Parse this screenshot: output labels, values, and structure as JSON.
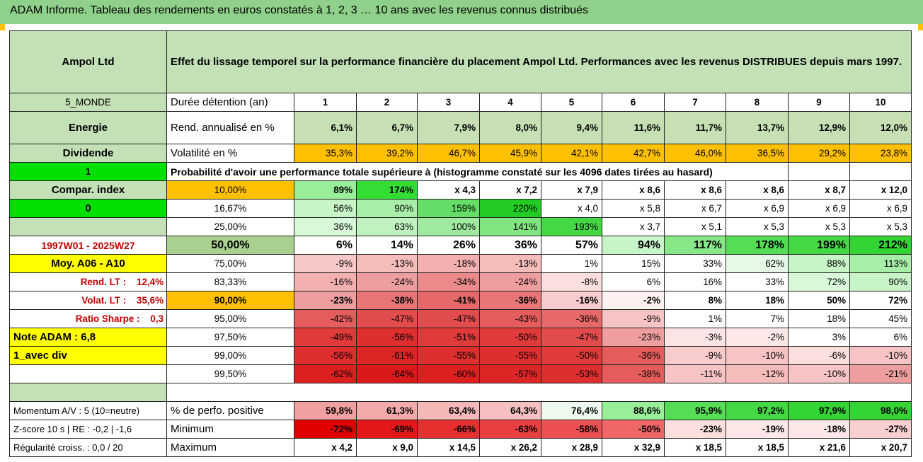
{
  "header_title": "ADAM Informe. Tableau des rendements en euros constatés à 1, 2, 3 … 10 ans avec les revenus connus distribués",
  "company": "Ampol Ltd",
  "description": "Effet du lissage temporel sur la performance financière du placement Ampol Ltd. Performances avec les revenus DISTRIBUES depuis mars 1997.",
  "durations": [
    "1",
    "2",
    "3",
    "4",
    "5",
    "6",
    "7",
    "8",
    "9",
    "10"
  ],
  "info_rows": [
    {
      "left": "5_MONDE",
      "label": "Durée détention (an)"
    },
    {
      "left": "Energie",
      "label": "Rend. annualisé en %",
      "values": [
        "6,1%",
        "6,7%",
        "7,9%",
        "8,0%",
        "9,4%",
        "11,6%",
        "11,7%",
        "13,7%",
        "12,9%",
        "12,0%"
      ]
    },
    {
      "left": "Dividende",
      "label": "Volatilité en %",
      "values": [
        "35,3%",
        "39,2%",
        "46,7%",
        "45,9%",
        "42,1%",
        "42,7%",
        "46,0%",
        "36,5%",
        "29,2%",
        "23,8%"
      ]
    }
  ],
  "prob_row": {
    "left": "1",
    "text": "Probabilité d'avoir une performance totale supérieure à (histogramme constaté sur les 4096 dates tirées au hasard)"
  },
  "dist_rows": [
    {
      "left": "Compar. index",
      "pct": "10,00%",
      "values": [
        "89%",
        "174%",
        "x 4,3",
        "x 7,2",
        "x 7,9",
        "x 8,6",
        "x 8,6",
        "x 8,6",
        "x 8,7",
        "x 12,0"
      ]
    },
    {
      "left": "0",
      "pct": "16,67%",
      "values": [
        "56%",
        "90%",
        "159%",
        "220%",
        "x 4,0",
        "x 5,8",
        "x 6,7",
        "x 6,9",
        "x 6,9",
        "x 6,9"
      ]
    },
    {
      "left": "",
      "pct": "25,00%",
      "values": [
        "36%",
        "63%",
        "100%",
        "141%",
        "193%",
        "x 3,7",
        "x 5,1",
        "x 5,3",
        "x 5,3",
        "x 5,3"
      ]
    },
    {
      "left": "1997W01 - 2025W27",
      "pct": "50,00%",
      "values": [
        "6%",
        "14%",
        "26%",
        "36%",
        "57%",
        "94%",
        "117%",
        "178%",
        "199%",
        "212%"
      ]
    },
    {
      "left": "Moy. A06 - A10",
      "pct": "75,00%",
      "values": [
        "-9%",
        "-13%",
        "-18%",
        "-13%",
        "1%",
        "15%",
        "33%",
        "62%",
        "88%",
        "113%"
      ]
    },
    {
      "left": "Rend. LT :    12,4%",
      "pct": "83,33%",
      "values": [
        "-16%",
        "-24%",
        "-34%",
        "-24%",
        "-8%",
        "6%",
        "16%",
        "33%",
        "72%",
        "90%"
      ]
    },
    {
      "left": "Volat. LT :    35,6%",
      "pct": "90,00%",
      "values": [
        "-23%",
        "-38%",
        "-41%",
        "-36%",
        "-16%",
        "-2%",
        "8%",
        "18%",
        "50%",
        "72%"
      ]
    },
    {
      "left": "Ratio Sharpe :    0,3",
      "pct": "95,00%",
      "values": [
        "-42%",
        "-47%",
        "-47%",
        "-43%",
        "-36%",
        "-9%",
        "1%",
        "7%",
        "18%",
        "45%"
      ]
    },
    {
      "left": "Note ADAM : 6,8",
      "pct": "97,50%",
      "values": [
        "-49%",
        "-56%",
        "-51%",
        "-50%",
        "-47%",
        "-23%",
        "-3%",
        "-2%",
        "3%",
        "6%"
      ]
    },
    {
      "left": "1_avec div",
      "pct": "99,00%",
      "values": [
        "-56%",
        "-61%",
        "-55%",
        "-55%",
        "-50%",
        "-36%",
        "-9%",
        "-10%",
        "-6%",
        "-10%"
      ]
    },
    {
      "left": "",
      "pct": "99,50%",
      "values": [
        "-62%",
        "-64%",
        "-60%",
        "-57%",
        "-53%",
        "-38%",
        "-11%",
        "-12%",
        "-10%",
        "-21%"
      ]
    }
  ],
  "summary_rows": [
    {
      "left": "Momentum A/V : 5 (10=neutre)",
      "label": "% de perfo. positive",
      "values": [
        "59,8%",
        "61,3%",
        "63,4%",
        "64,3%",
        "76,4%",
        "88,6%",
        "95,9%",
        "97,2%",
        "97,9%",
        "98,0%"
      ]
    },
    {
      "left": "Z-score 10 s | RE : -0,2 | -1,6",
      "label": "Minimum",
      "values": [
        "-72%",
        "-69%",
        "-66%",
        "-63%",
        "-58%",
        "-50%",
        "-23%",
        "-19%",
        "-18%",
        "-27%"
      ]
    },
    {
      "left": "Régularité croiss. : 0,0 / 20",
      "label": "Maximum",
      "values": [
        "x 4,2",
        "x 9,0",
        "x 14,5",
        "x 26,2",
        "x 28,9",
        "x 32,9",
        "x 18,5",
        "x 18,5",
        "x 21,6",
        "x 20,7"
      ]
    }
  ],
  "colors": {
    "header_green": "#8fd08a",
    "label_green": "#a9d08e",
    "light_green": "#c3e0b6",
    "bright_green": "#00e000",
    "yellow": "#ffff00",
    "orange": "#ffc000",
    "red_text": "#c00000",
    "corner_marker": "#ffc000"
  },
  "cell_colors": {
    "rend": "#c6e0b4",
    "vol": "#ffc000",
    "dist": [
      [
        "#99ee99",
        "#33dd33",
        "#fff",
        "#fff",
        "#fff",
        "#fff",
        "#fff",
        "#fff",
        "#fff",
        "#fff"
      ],
      [
        "#c8f5c8",
        "#a8eea8",
        "#66dd66",
        "#22cc22",
        "#fff",
        "#fff",
        "#fff",
        "#fff",
        "#fff",
        "#fff"
      ],
      [
        "#d8f8d8",
        "#c0f2c0",
        "#a0eaa0",
        "#80e480",
        "#44d844",
        "#fff",
        "#fff",
        "#fff",
        "#fff",
        "#fff"
      ],
      [
        "#fff",
        "#fff",
        "#fff",
        "#fff",
        "#fff",
        "#c8f5c8",
        "#88e888",
        "#55dd55",
        "#44d844",
        "#33d433"
      ],
      [
        "#f8c8c8",
        "#f5bcbc",
        "#f2b0b0",
        "#f5bcbc",
        "#fff",
        "#fff",
        "#fff",
        "#e6f9e6",
        "#c8f5c8",
        "#a8eea8"
      ],
      [
        "#f2b0b0",
        "#ee9e9e",
        "#ea8a8a",
        "#ee9e9e",
        "#fbdede",
        "#fff",
        "#fff",
        "#fff",
        "#d8f8d8",
        "#c8f5c8"
      ],
      [
        "#ee9e9e",
        "#e87676",
        "#e66868",
        "#e87676",
        "#f8cccc",
        "#fdf0f0",
        "#fff",
        "#fff",
        "#fff",
        "#fff"
      ],
      [
        "#e45c5c",
        "#e24c4c",
        "#e24c4c",
        "#e45c5c",
        "#e66868",
        "#f6c4c4",
        "#fff",
        "#fff",
        "#fff",
        "#fff"
      ],
      [
        "#e03a3a",
        "#de2e2e",
        "#e03a3a",
        "#e03a3a",
        "#e24c4c",
        "#ee9e9e",
        "#fbe4e4",
        "#fde8e8",
        "#fff",
        "#fff"
      ],
      [
        "#de2e2e",
        "#dc2626",
        "#de2e2e",
        "#de2e2e",
        "#e03a3a",
        "#e45c5c",
        "#f8cccc",
        "#f6c4c4",
        "#fbdede",
        "#f6c4c4"
      ],
      [
        "#dc2020",
        "#da1a1a",
        "#dc2020",
        "#dc2626",
        "#de2e2e",
        "#e45c5c",
        "#f6c4c4",
        "#f5bcbc",
        "#f6c4c4",
        "#ee9e9e"
      ]
    ],
    "summary": [
      [
        "#f0a0a0",
        "#f2aaaa",
        "#f4b8b8",
        "#f6c0c0",
        "#eefaee",
        "#99ee99",
        "#55dd55",
        "#44d844",
        "#33d433",
        "#33d433"
      ],
      [
        "#e00000",
        "#e41818",
        "#e63030",
        "#e84040",
        "#ec5050",
        "#ee6666",
        "#fbdede",
        "#fde8e8",
        "#fde8e8",
        "#f8d0d0"
      ],
      [
        "#fff",
        "#fff",
        "#fff",
        "#fff",
        "#fff",
        "#fff",
        "#fff",
        "#fff",
        "#fff",
        "#fff"
      ]
    ]
  }
}
